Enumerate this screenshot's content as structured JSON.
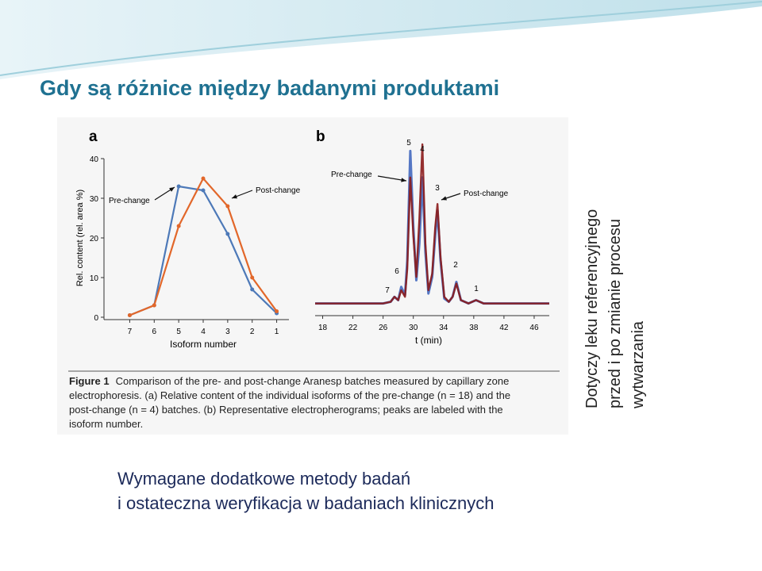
{
  "title": "Gdy są różnice między badanymi produktami",
  "chart_data": [
    {
      "type": "line",
      "panel": "a",
      "x_label": "Isoform number",
      "y_label": "Rel. content (rel. area %)",
      "categories": [
        7,
        6,
        5,
        4,
        3,
        2,
        1
      ],
      "series": [
        {
          "name": "Pre-change",
          "color": "#4d79b8",
          "values": [
            0.5,
            3,
            33,
            32,
            21,
            7,
            1
          ]
        },
        {
          "name": "Post-change",
          "color": "#e2672a",
          "values": [
            0.5,
            3,
            23,
            35,
            28,
            10,
            1.5
          ]
        }
      ],
      "ylim": [
        0,
        40
      ],
      "yticks": [
        0,
        10,
        20,
        30,
        40
      ]
    },
    {
      "type": "trace",
      "panel": "b",
      "x_label": "t (min)",
      "x": [
        17,
        22,
        26,
        27,
        27.5,
        28,
        28.4,
        28.9,
        29.2,
        29.6,
        30.0,
        30.4,
        30.8,
        31.2,
        31.6,
        32.0,
        32.5,
        32.9,
        33.2,
        33.6,
        34.1,
        34.7,
        35.2,
        35.7,
        36.3,
        37.3,
        38.3,
        39.3,
        42,
        48
      ],
      "series": [
        {
          "name": "Pre-change",
          "color": "#5577c4",
          "values": [
            4,
            4,
            4,
            5,
            8,
            6,
            14,
            9,
            30,
            96,
            50,
            18,
            40,
            80,
            35,
            10,
            20,
            45,
            60,
            30,
            7,
            5,
            8,
            17,
            6,
            4,
            6,
            4,
            4,
            4
          ]
        },
        {
          "name": "Post-change",
          "color": "#8b1a1a",
          "values": [
            4,
            4,
            4,
            5,
            8,
            6,
            12,
            8,
            25,
            80,
            45,
            20,
            55,
            100,
            40,
            12,
            22,
            50,
            64,
            32,
            8,
            5,
            8,
            16,
            6,
            4,
            6,
            4,
            4,
            4
          ]
        }
      ],
      "peak_labels": [
        5,
        4,
        3,
        6,
        2,
        7,
        1
      ],
      "xlim": [
        17,
        48
      ],
      "xticks": [
        18,
        22,
        26,
        30,
        34,
        38,
        42,
        46
      ]
    }
  ],
  "caption": {
    "label": "Figure 1",
    "lines": [
      "Comparison of the pre- and post-change Aranesp batches measured by capillary zone",
      "electrophoresis. (a) Relative content of the individual isoforms of the pre-change (n = 18) and the",
      "post-change (n = 4) batches. (b) Representative electropherograms; peaks are labeled with the",
      "isoform number."
    ]
  },
  "side_note": [
    "Dotyczy leku referencyjnego",
    "przed i po zmianie procesu",
    "wytwarzania"
  ],
  "footer": [
    "Wymagane dodatkowe metody badań",
    "i ostateczna weryfikacja w badaniach klinicznych"
  ]
}
